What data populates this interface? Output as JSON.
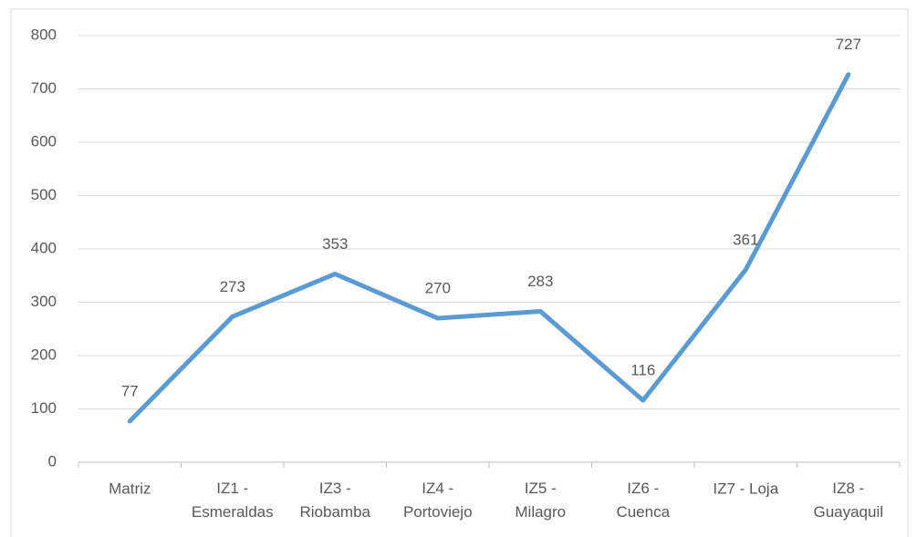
{
  "chart_data": {
    "type": "line",
    "categories": [
      "Matriz",
      "IZ1 - Esmeraldas",
      "IZ3 - Riobamba",
      "IZ4 - Portoviejo",
      "IZ5 - Milagro",
      "IZ6 - Cuenca",
      "IZ7 - Loja",
      "IZ8 - Guayaquil"
    ],
    "series": [
      {
        "color": "#5b9bd5",
        "values": [
          77,
          273,
          353,
          270,
          283,
          116,
          361,
          727
        ]
      }
    ],
    "ylim": [
      0,
      800
    ],
    "yticks": [
      0,
      100,
      200,
      300,
      400,
      500,
      600,
      700,
      800
    ],
    "grid": true
  }
}
